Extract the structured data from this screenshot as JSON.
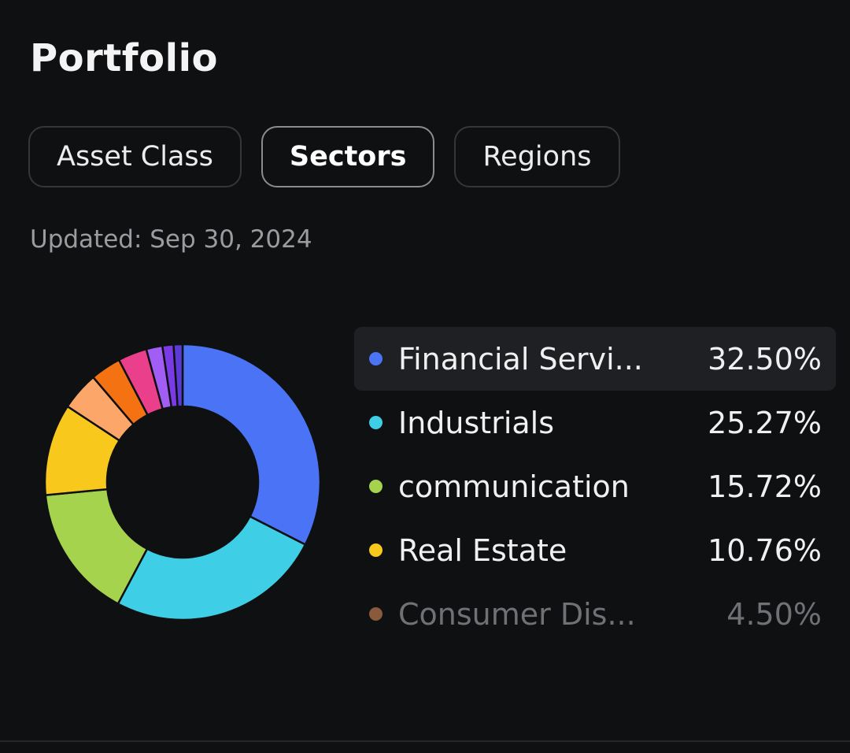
{
  "header": {
    "title": "Portfolio"
  },
  "tabs": [
    {
      "label": "Asset Class",
      "active": false
    },
    {
      "label": "Sectors",
      "active": true
    },
    {
      "label": "Regions",
      "active": false
    }
  ],
  "updated": "Updated: Sep 30, 2024",
  "legend": [
    {
      "label": "Financial Servi...",
      "value": "32.50%",
      "color": "#4a74f5"
    },
    {
      "label": "Industrials",
      "value": "25.27%",
      "color": "#3ecfe6"
    },
    {
      "label": "communication",
      "value": "15.72%",
      "color": "#a6d34d"
    },
    {
      "label": "Real Estate",
      "value": "10.76%",
      "color": "#f8c81d"
    },
    {
      "label": "Consumer Dis...",
      "value": "4.50%",
      "color": "#8a5a3c"
    }
  ],
  "chart_data": {
    "type": "pie",
    "donut": true,
    "slices": [
      {
        "value": 32.5,
        "color": "#4a74f5"
      },
      {
        "value": 25.27,
        "color": "#3ecfe6"
      },
      {
        "value": 15.72,
        "color": "#a6d34d"
      },
      {
        "value": 10.76,
        "color": "#f8c81d"
      },
      {
        "value": 4.5,
        "color": "#fda66a"
      },
      {
        "value": 3.6,
        "color": "#f47212"
      },
      {
        "value": 3.4,
        "color": "#ea3f8a"
      },
      {
        "value": 1.9,
        "color": "#a25ef4"
      },
      {
        "value": 1.3,
        "color": "#7a3be6"
      },
      {
        "value": 1.05,
        "color": "#5b3bd8"
      }
    ]
  }
}
